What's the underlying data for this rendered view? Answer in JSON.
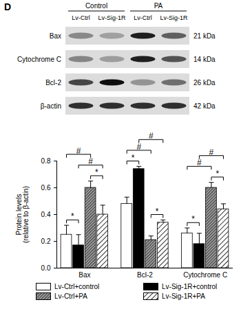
{
  "panel_label": "D",
  "blot": {
    "groups": [
      {
        "label": "Control",
        "lanes": [
          "Lv-Ctrl",
          "Lv-Sig-1R"
        ]
      },
      {
        "label": "PA",
        "lanes": [
          "Lv-Ctrl",
          "Lv-Sig-1R"
        ]
      }
    ],
    "rows": [
      {
        "protein": "Bax",
        "size": "21 kDa"
      },
      {
        "protein": "Cytochrome C",
        "size": "14 kDa"
      },
      {
        "protein": "Bcl-2",
        "size": "26 kDa"
      },
      {
        "protein": "β-actin",
        "size": "42 kDa"
      }
    ]
  },
  "chart_data": {
    "type": "bar",
    "categories": [
      "Bax",
      "Bcl-2",
      "Cytochrome C"
    ],
    "y_label": "Protein levels\n(relative to β-actin)",
    "ylim": [
      0,
      0.8
    ],
    "yticks": [
      {
        "value": 0,
        "label": "0.0"
      },
      0.2,
      0.4,
      0.6,
      0.8
    ],
    "grid": false,
    "legend": "bottom",
    "series": [
      {
        "name": "Lv-Ctrl+control",
        "color": "#ffffff",
        "values": [
          0.25,
          0.48,
          0.26
        ],
        "errors": [
          0.07,
          0.05,
          0.04
        ]
      },
      {
        "name": "Lv-Sig-1R+control",
        "color": "#000000",
        "values": [
          0.17,
          0.74,
          0.18
        ],
        "errors": [
          0.08,
          0.02,
          0.08
        ]
      },
      {
        "name": "Lv-Ctrl+PA",
        "color": "#9a9a9a",
        "values": [
          0.6,
          0.21,
          0.6
        ],
        "errors": [
          0.05,
          0.03,
          0.04
        ]
      },
      {
        "name": "Lv-Sig-1R+PA",
        "color": "#ffffff",
        "values": [
          0.4,
          0.34,
          0.44
        ],
        "errors": [
          0.07,
          0.02,
          0.04
        ]
      }
    ],
    "comparisons": [
      {
        "category": "Bax",
        "a": "Lv-Ctrl+control",
        "b": "Lv-Sig-1R+control",
        "text": "*"
      },
      {
        "category": "Bax",
        "a": "Lv-Ctrl+PA",
        "b": "Lv-Sig-1R+PA",
        "text": "*"
      },
      {
        "category": "Bax",
        "a": "Lv-Sig-1R+control",
        "b": "Lv-Sig-1R+PA",
        "text": "#"
      },
      {
        "category": "Bax",
        "a": "Lv-Ctrl+control",
        "b": "Lv-Ctrl+PA",
        "text": "#"
      },
      {
        "category": "Bcl-2",
        "a": "Lv-Ctrl+control",
        "b": "Lv-Sig-1R+control",
        "text": "*"
      },
      {
        "category": "Bcl-2",
        "a": "Lv-Ctrl+PA",
        "b": "Lv-Sig-1R+PA",
        "text": "*"
      },
      {
        "category": "Bcl-2",
        "a": "Lv-Ctrl+control",
        "b": "Lv-Ctrl+PA",
        "text": "#"
      },
      {
        "category": "Bcl-2",
        "a": "Lv-Sig-1R+control",
        "b": "Lv-Sig-1R+PA",
        "text": "#"
      },
      {
        "category": "Cytochrome C",
        "a": "Lv-Ctrl+control",
        "b": "Lv-Sig-1R+control",
        "text": "*"
      },
      {
        "category": "Cytochrome C",
        "a": "Lv-Ctrl+PA",
        "b": "Lv-Sig-1R+PA",
        "text": "*"
      },
      {
        "category": "Cytochrome C",
        "a": "Lv-Ctrl+control",
        "b": "Lv-Ctrl+PA",
        "text": "#"
      },
      {
        "category": "Cytochrome C",
        "a": "Lv-Sig-1R+control",
        "b": "Lv-Sig-1R+PA",
        "text": "#"
      }
    ]
  }
}
